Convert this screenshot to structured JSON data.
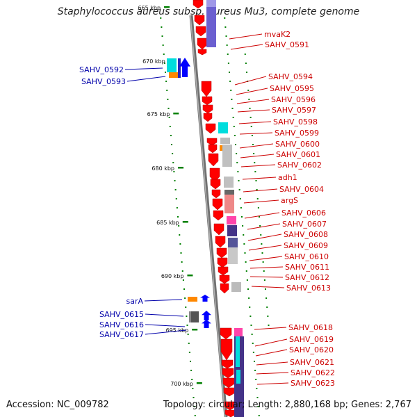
{
  "title": "Staphylococcus aureus subsp. aureus Mu3, complete genome",
  "footer": {
    "accession": "Accession: NC_009782",
    "summary": "Topology: circular; Length: 2,880,168 bp; Genes: 2,767"
  },
  "colors": {
    "forward_label": "#cc0000",
    "reverse_label": "#0000aa",
    "forward_gene": "#ff0000",
    "reverse_gene": "#0000ff",
    "backbone": "#808080",
    "dots": "#008000"
  },
  "ticks": [
    "665 kbp",
    "670 kbp",
    "675 kbp",
    "680 kbp",
    "685 kbp",
    "690 kbp",
    "695 kbp",
    "700 kbp"
  ],
  "left_labels": [
    {
      "text": "SAHV_0592"
    },
    {
      "text": "SAHV_0593"
    },
    {
      "text": "sarA"
    },
    {
      "text": "SAHV_0615"
    },
    {
      "text": "SAHV_0616"
    },
    {
      "text": "SAHV_0617"
    }
  ],
  "right_labels": [
    {
      "text": "mvaK2"
    },
    {
      "text": "SAHV_0591"
    },
    {
      "text": "SAHV_0594"
    },
    {
      "text": "SAHV_0595"
    },
    {
      "text": "SAHV_0596"
    },
    {
      "text": "SAHV_0597"
    },
    {
      "text": "SAHV_0598"
    },
    {
      "text": "SAHV_0599"
    },
    {
      "text": "SAHV_0600"
    },
    {
      "text": "SAHV_0601"
    },
    {
      "text": "SAHV_0602"
    },
    {
      "text": "adh1"
    },
    {
      "text": "SAHV_0604"
    },
    {
      "text": "argS"
    },
    {
      "text": "SAHV_0606"
    },
    {
      "text": "SAHV_0607"
    },
    {
      "text": "SAHV_0608"
    },
    {
      "text": "SAHV_0609"
    },
    {
      "text": "SAHV_0610"
    },
    {
      "text": "SAHV_0611"
    },
    {
      "text": "SAHV_0612"
    },
    {
      "text": "SAHV_0613"
    },
    {
      "text": "SAHV_0618"
    },
    {
      "text": "SAHV_0619"
    },
    {
      "text": "SAHV_0620"
    },
    {
      "text": "SAHV_0621"
    },
    {
      "text": "SAHV_0622"
    },
    {
      "text": "SAHV_0623"
    }
  ]
}
